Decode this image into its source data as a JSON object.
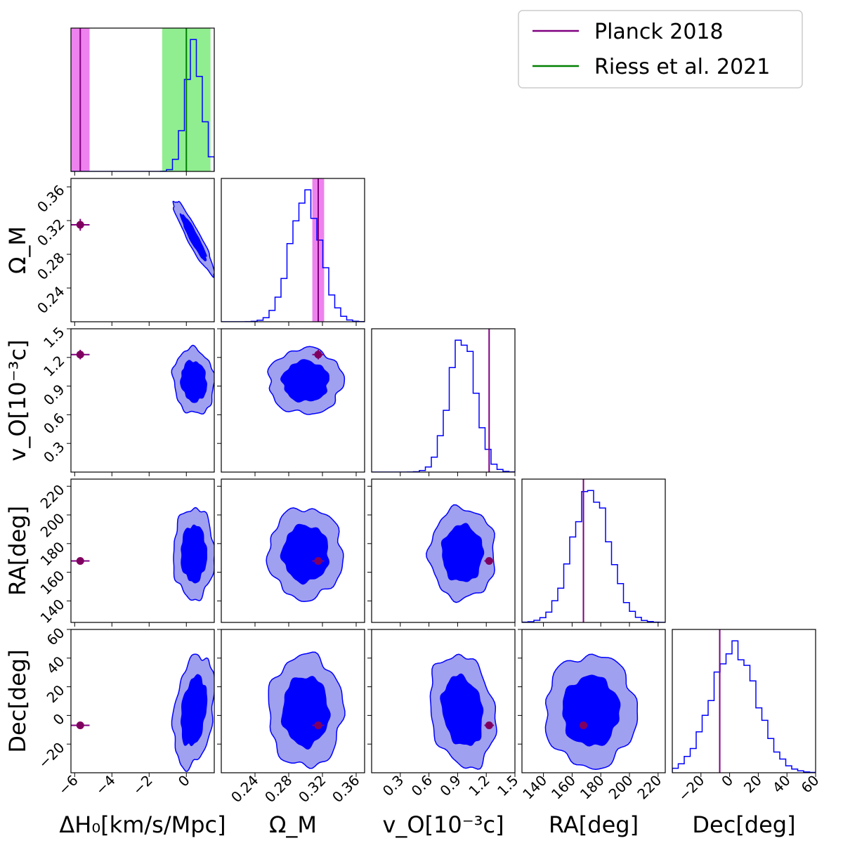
{
  "chart_data": {
    "type": "corner",
    "legend": [
      {
        "label": "Planck 2018",
        "color": "#800080"
      },
      {
        "label": "Riess et al. 2021",
        "color": "#008000"
      }
    ],
    "colors": {
      "hist": "#0000ff",
      "contour_inner": "#0000ff",
      "contour_outer": "#a0a0f0",
      "contour_line": "#0000ff",
      "planck": "#800080",
      "planck_band": "#ee82ee",
      "riess": "#008000",
      "riess_band": "#90ee90",
      "point": "#800060"
    },
    "parameters": [
      {
        "name": "dH0",
        "label": "ΔH₀[km/s/Mpc]",
        "range": [
          -6.2,
          1.5
        ],
        "ticks": [
          -6,
          -4,
          -2,
          0
        ],
        "tick_labels": [
          "−6",
          "−4",
          "−2",
          "0"
        ],
        "mean": 0.4,
        "sd": 0.45,
        "skew": 0,
        "reference": {
          "planck": -5.7,
          "planck_err": 0.5,
          "riess": 0,
          "riess_err": 1.3
        }
      },
      {
        "name": "OmegaM",
        "label": "Ω_M",
        "range": [
          0.2,
          0.37
        ],
        "ticks": [
          0.24,
          0.28,
          0.32,
          0.36
        ],
        "tick_labels": [
          "0.24",
          "0.28",
          "0.32",
          "0.36"
        ],
        "mean": 0.3,
        "sd": 0.018,
        "skew": 0,
        "reference": {
          "planck": 0.315,
          "planck_err": 0.007
        }
      },
      {
        "name": "vO",
        "label": "v_O[10⁻³c]",
        "range": [
          0,
          1.5
        ],
        "ticks": [
          0.3,
          0.6,
          0.9,
          1.2,
          1.5
        ],
        "tick_labels": [
          "0.3",
          "0.6",
          "0.9",
          "1.2",
          "1.5"
        ],
        "mean": 0.95,
        "sd": 0.14,
        "skew": 0,
        "reference": {
          "planck": 1.23
        }
      },
      {
        "name": "RA",
        "label": "RA[deg]",
        "range": [
          125,
          225
        ],
        "ticks": [
          140,
          160,
          180,
          200,
          220
        ],
        "tick_labels": [
          "140",
          "160",
          "180",
          "200",
          "220"
        ],
        "mean": 173,
        "sd": 13,
        "skew": 0,
        "reference": {
          "planck": 167.9
        }
      },
      {
        "name": "Dec",
        "label": "Dec[deg]",
        "range": [
          -40,
          60
        ],
        "ticks": [
          -20,
          0,
          20,
          40,
          60
        ],
        "tick_labels": [
          "−20",
          "0",
          "20",
          "40",
          "60"
        ],
        "mean": 3,
        "sd": 16,
        "skew": 0,
        "reference": {
          "planck": -6.9
        }
      }
    ],
    "correlations": [
      {
        "pair": [
          "dH0",
          "OmegaM"
        ],
        "rho": -0.93
      },
      {
        "pair": [
          "dH0",
          "vO"
        ],
        "rho": -0.1
      },
      {
        "pair": [
          "dH0",
          "RA"
        ],
        "rho": 0.0
      },
      {
        "pair": [
          "dH0",
          "Dec"
        ],
        "rho": 0.3
      },
      {
        "pair": [
          "OmegaM",
          "vO"
        ],
        "rho": 0.0
      },
      {
        "pair": [
          "OmegaM",
          "RA"
        ],
        "rho": 0.0
      },
      {
        "pair": [
          "OmegaM",
          "Dec"
        ],
        "rho": 0.0
      },
      {
        "pair": [
          "vO",
          "RA"
        ],
        "rho": 0.0
      },
      {
        "pair": [
          "vO",
          "Dec"
        ],
        "rho": -0.2
      },
      {
        "pair": [
          "RA",
          "Dec"
        ],
        "rho": 0.0
      }
    ],
    "reference_points": {
      "dH0": -5.7,
      "OmegaM": 0.315,
      "vO": 1.23,
      "RA": 167.9,
      "Dec": -6.9,
      "dH0_err": 0.5,
      "OmegaM_err": 0.007,
      "vO_err": 0.05
    }
  }
}
